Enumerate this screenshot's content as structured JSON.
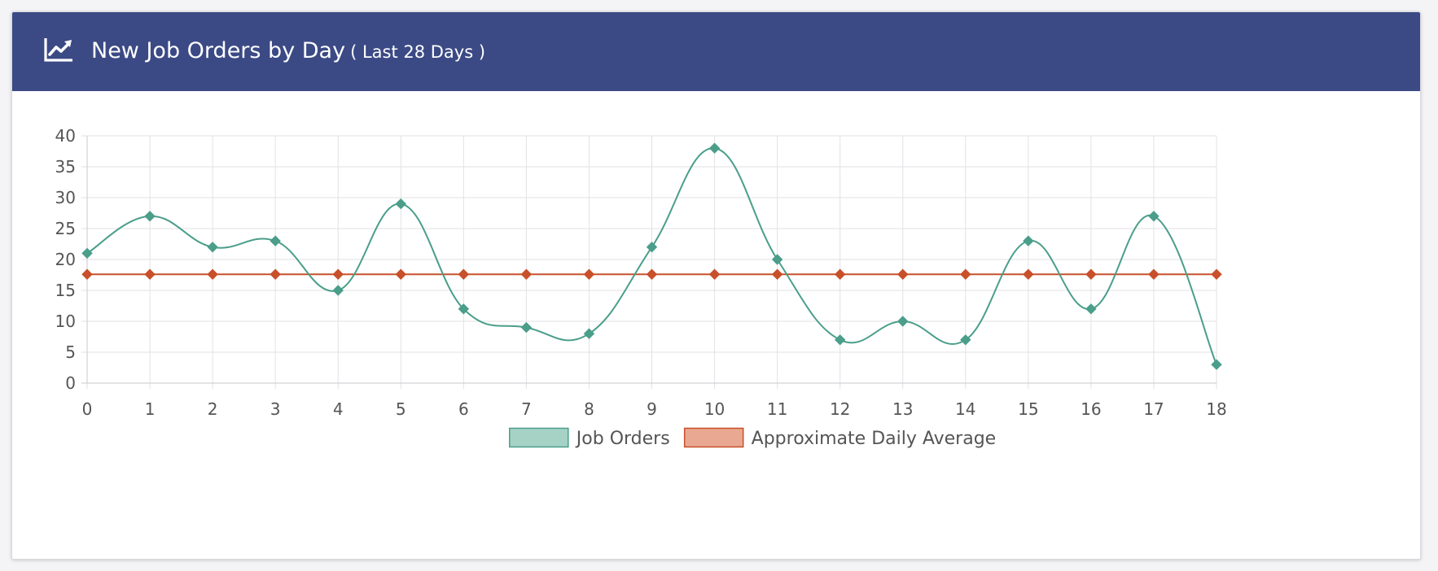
{
  "header": {
    "title": "New Job Orders by Day",
    "subtitle": "( Last 28 Days )",
    "icon": "line-chart-icon",
    "background": "#3b4a85",
    "text_color": "#ffffff"
  },
  "chart_data": {
    "type": "line",
    "x": [
      0,
      1,
      2,
      3,
      4,
      5,
      6,
      7,
      8,
      9,
      10,
      11,
      12,
      13,
      14,
      15,
      16,
      17,
      18
    ],
    "xlim": [
      0,
      18
    ],
    "ylim": [
      0,
      40
    ],
    "yticks": [
      0,
      5,
      10,
      15,
      20,
      25,
      30,
      35,
      40
    ],
    "grid": true,
    "legend_position": "bottom",
    "series": [
      {
        "name": "Job Orders",
        "values": [
          21,
          27,
          22,
          23,
          15,
          29,
          12,
          9,
          8,
          22,
          38,
          20,
          7,
          10,
          7,
          23,
          12,
          27,
          3
        ],
        "color": "#4a9e8a",
        "fill": "#a6d2c6",
        "marker": "diamond",
        "smooth": true
      },
      {
        "name": "Approximate Daily Average",
        "values": [
          17.6,
          17.6,
          17.6,
          17.6,
          17.6,
          17.6,
          17.6,
          17.6,
          17.6,
          17.6,
          17.6,
          17.6,
          17.6,
          17.6,
          17.6,
          17.6,
          17.6,
          17.6,
          17.6
        ],
        "color": "#c8502a",
        "fill": "#e8a891",
        "marker": "diamond",
        "smooth": false
      }
    ]
  }
}
